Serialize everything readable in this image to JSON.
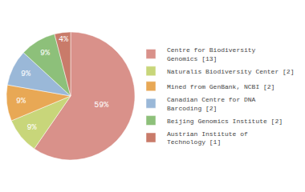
{
  "chart_data": {
    "type": "pie",
    "categories": [
      "Centre for Biodiversity\nGenomics [13]",
      "Naturalis Biodiversity Center [2]",
      "Mined from GenBank, NCBI [2]",
      "Canadian Centre for DNA\nBarcoding [2]",
      "Beijing Genomics Institute [2]",
      "Austrian Institute of\nTechnology [1]"
    ],
    "values": [
      59,
      9,
      9,
      9,
      9,
      4
    ],
    "value_labels": [
      "59%",
      "9%",
      "9%",
      "9%",
      "9%",
      "4%"
    ],
    "data_labels": true,
    "colors": [
      "#d9918a",
      "#c8d67a",
      "#e8a855",
      "#9ab8d8",
      "#8dc07a",
      "#c97b6a"
    ],
    "legend": "right"
  }
}
